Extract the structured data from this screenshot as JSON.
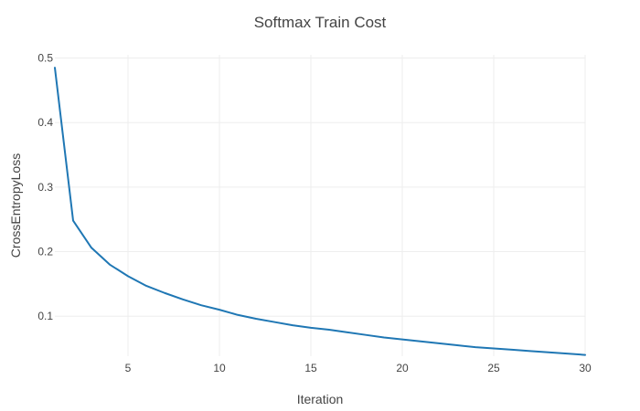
{
  "chart_data": {
    "type": "line",
    "title": "Softmax Train Cost",
    "xlabel": "Iteration",
    "ylabel": "CrossEntropyLoss",
    "xlim": [
      1,
      30
    ],
    "ylim": [
      0.038,
      0.505
    ],
    "x_ticks": [
      5,
      10,
      15,
      20,
      25,
      30
    ],
    "y_ticks": [
      0.1,
      0.2,
      0.3,
      0.4,
      0.5
    ],
    "grid": true,
    "color": "#1f77b4",
    "series": [
      {
        "name": "CrossEntropyLoss",
        "x": [
          1,
          2,
          3,
          4,
          5,
          6,
          7,
          8,
          9,
          10,
          11,
          12,
          13,
          14,
          15,
          16,
          17,
          18,
          19,
          20,
          21,
          22,
          23,
          24,
          25,
          26,
          27,
          28,
          29,
          30
        ],
        "values": [
          0.485,
          0.248,
          0.206,
          0.18,
          0.162,
          0.147,
          0.136,
          0.126,
          0.117,
          0.11,
          0.102,
          0.096,
          0.091,
          0.086,
          0.082,
          0.079,
          0.075,
          0.071,
          0.067,
          0.064,
          0.061,
          0.058,
          0.055,
          0.052,
          0.05,
          0.048,
          0.046,
          0.044,
          0.042,
          0.04
        ]
      }
    ]
  }
}
